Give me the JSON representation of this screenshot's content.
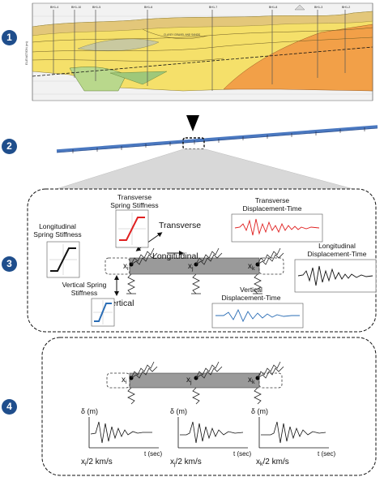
{
  "steps": [
    "1",
    "2",
    "3",
    "4"
  ],
  "profile": {
    "borehole_labels": [
      "BH1-4",
      "BH1-10",
      "BH1-5",
      "BH1-6",
      "BH1-7",
      "BH1-8",
      "BH1-3",
      "BH1-2"
    ],
    "elevation_axis_label": "ELEVATION (m)",
    "inner_note": "CLAYEY GRAVEL AND SANDS"
  },
  "panel3": {
    "transverse_stiffness_title_line1": "Transverse",
    "transverse_stiffness_title_line2": "Spring Stiffness",
    "longitudinal_stiffness_title_line1": "Longitudinal",
    "longitudinal_stiffness_title_line2": "Spring Stiffness",
    "vertical_stiffness_title_line1": "Vertical Spring",
    "vertical_stiffness_title_line2": "Stiffness",
    "transverse_dir": "Transverse",
    "longitudinal_dir": "Longitudinal",
    "vertical_dir": "Vertical",
    "transverse_disp_title_line1": "Transverse",
    "transverse_disp_title_line2": "Displacement-Time",
    "longitudinal_disp_title_line1": "Longitudinal",
    "longitudinal_disp_title_line2": "Displacement-Time",
    "vertical_disp_title_line1": "Vertical",
    "vertical_disp_title_line2": "Displacement-Time",
    "node_i": "x",
    "node_i_sub": "i",
    "node_j": "x",
    "node_j_sub": "j",
    "node_k": "x",
    "node_k_sub": "k"
  },
  "panel4": {
    "node_i": "x",
    "node_i_sub": "i",
    "node_j": "x",
    "node_j_sub": "j",
    "node_k": "x",
    "node_k_sub": "k",
    "plot_ylabel": "δ (m)",
    "plot_xlabel": "t (sec)",
    "delay_i": "x",
    "delay_i_sub": "i",
    "delay_j": "x",
    "delay_j_sub": "j",
    "delay_k": "x",
    "delay_k_sub": "k",
    "delay_suffix": "/2 km/s"
  },
  "colors": {
    "badge": "#1f4e8c",
    "transverse_curve": "#e02020",
    "longitudinal_curve": "#111111",
    "vertical_curve": "#2a6db5",
    "pipe": "#9a9a9a",
    "pipeline_blue": "#4a78c0"
  }
}
